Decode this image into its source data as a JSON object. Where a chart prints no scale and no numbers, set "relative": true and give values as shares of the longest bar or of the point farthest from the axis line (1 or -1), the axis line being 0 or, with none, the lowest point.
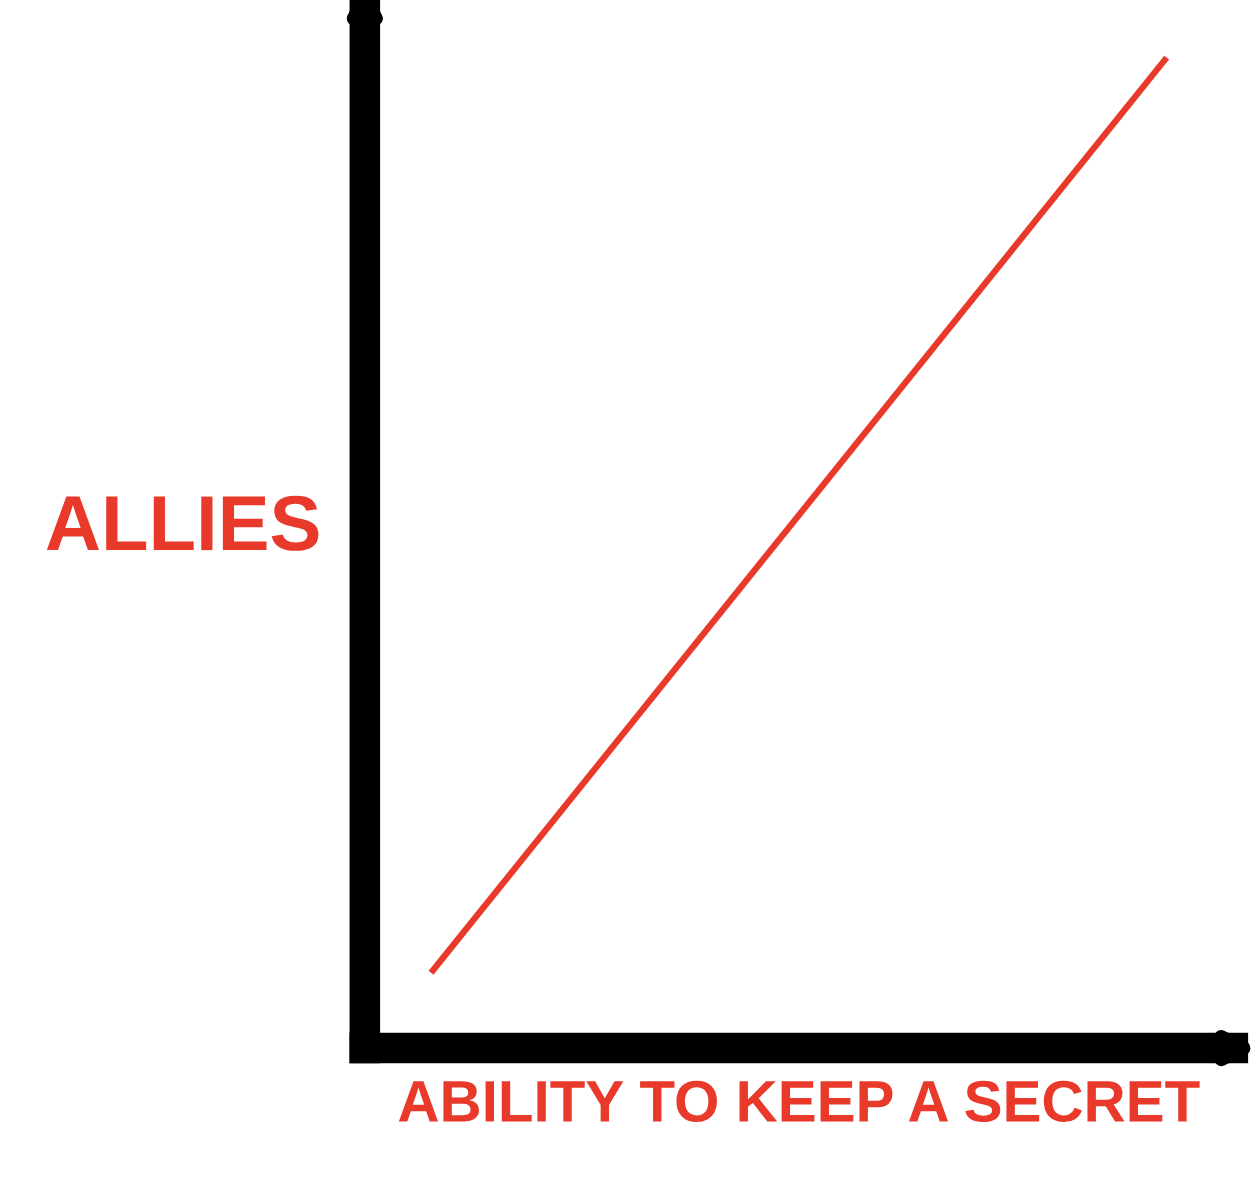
{
  "chart_data": {
    "type": "line",
    "relative": true,
    "xlabel": "ABILITY TO KEEP A SECRET",
    "ylabel": "ALLIES",
    "categories": [
      null,
      null
    ],
    "series": [
      {
        "color": "#e8392a",
        "values": [
          0.076,
          1
        ]
      }
    ],
    "grid": false,
    "legend": false
  }
}
